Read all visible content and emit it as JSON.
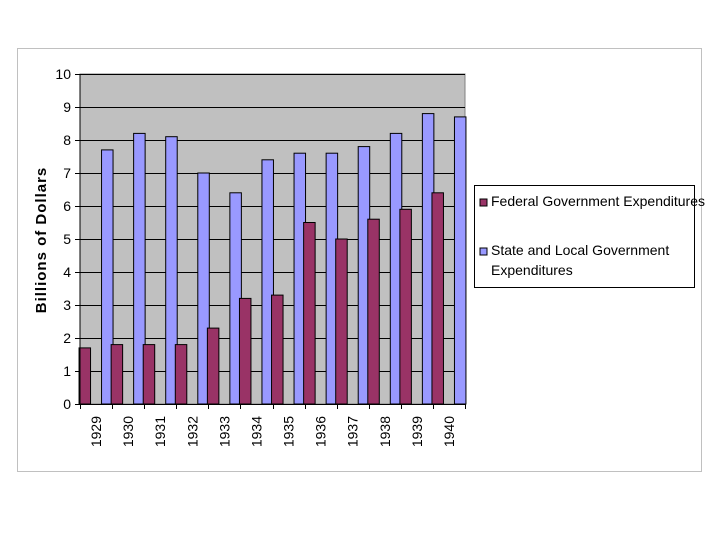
{
  "chart_data": {
    "type": "bar",
    "title": "",
    "xlabel": "",
    "ylabel": "Billions of Dollars",
    "ylim": [
      0,
      10
    ],
    "yticks": [
      0,
      1,
      2,
      3,
      4,
      5,
      6,
      7,
      8,
      9,
      10
    ],
    "grid": true,
    "legend_position": "right",
    "categories": [
      "1929",
      "1930",
      "1931",
      "1932",
      "1933",
      "1934",
      "1935",
      "1936",
      "1937",
      "1938",
      "1939",
      "1940"
    ],
    "series": [
      {
        "name": "Federal Government Expenditures",
        "legend_lines": [
          "Federal Government Expenditures"
        ],
        "color": "#993366",
        "values": [
          1.7,
          1.8,
          1.8,
          1.8,
          2.3,
          3.2,
          3.3,
          5.5,
          5.0,
          5.6,
          5.9,
          6.4
        ]
      },
      {
        "name": "State and Local Government Expenditures",
        "legend_lines": [
          "State and Local Government",
          "Expenditures"
        ],
        "color": "#9999ff",
        "values": [
          7.7,
          8.2,
          8.1,
          7.0,
          6.4,
          7.4,
          7.6,
          7.6,
          7.8,
          8.2,
          8.8,
          8.7
        ]
      }
    ],
    "plot_background": "#c0c0c0"
  }
}
